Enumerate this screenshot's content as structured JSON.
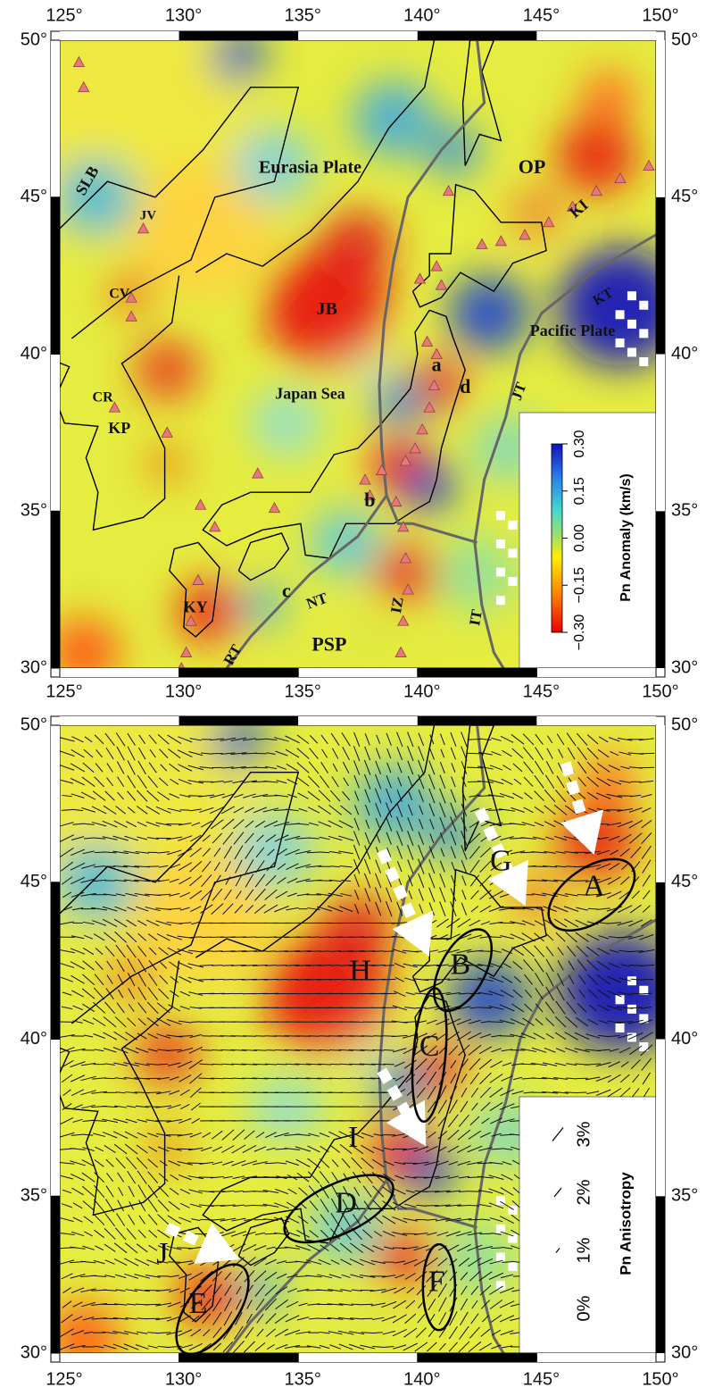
{
  "axes": {
    "xticks": [
      {
        "value": 125,
        "label": "125°"
      },
      {
        "value": 130,
        "label": "130°"
      },
      {
        "value": 135,
        "label": "135°"
      },
      {
        "value": 140,
        "label": "140°"
      },
      {
        "value": 145,
        "label": "145°"
      },
      {
        "value": 150,
        "label": "150°"
      }
    ],
    "yticks": [
      {
        "value": 30,
        "label": "30°"
      },
      {
        "value": 35,
        "label": "35°"
      },
      {
        "value": 40,
        "label": "40°"
      },
      {
        "value": 45,
        "label": "45°"
      },
      {
        "value": 50,
        "label": "50°"
      }
    ]
  },
  "top_map": {
    "labels": [
      "Eurasia Plate",
      "SLB",
      "JV",
      "CV",
      "CR",
      "KP",
      "JB",
      "Japan Sea",
      "a",
      "b",
      "c",
      "d",
      "OP",
      "KI",
      "KT",
      "Pacific Plate",
      "JT",
      "NT",
      "RT",
      "IZ",
      "IT",
      "PSP",
      "KY"
    ],
    "colorbar": {
      "title": "Pn Anomaly (km/s)",
      "lim": [
        -0.3,
        0.3
      ],
      "ticks": [
        {
          "value": -0.3,
          "label": "−0.30"
        },
        {
          "value": -0.15,
          "label": "−0.15"
        },
        {
          "value": 0,
          "label": "0.00"
        },
        {
          "value": 0.15,
          "label": "0.15"
        },
        {
          "value": 0.3,
          "label": "0.30"
        }
      ]
    }
  },
  "bottom_map": {
    "labels": [
      "A",
      "B",
      "C",
      "D",
      "E",
      "F",
      "G",
      "H",
      "I",
      "J"
    ],
    "legend": {
      "title": "Pn Anisotropy",
      "ticks": [
        {
          "value": 0,
          "label": "0%"
        },
        {
          "value": 1,
          "label": "1%"
        },
        {
          "value": 2,
          "label": "2%"
        },
        {
          "value": 3,
          "label": "3%"
        }
      ]
    }
  }
}
